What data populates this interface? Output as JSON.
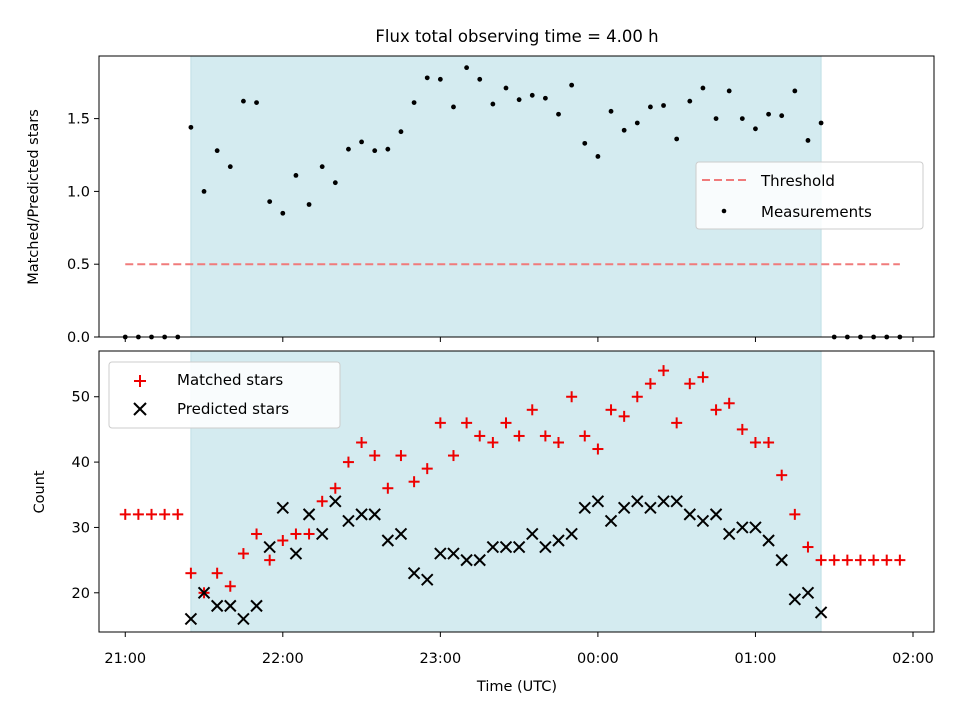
{
  "figure": {
    "title": "Flux total observing time = 4.00 h",
    "xlabel": "Time (UTC)",
    "x_tick_labels": [
      "21:00",
      "22:00",
      "23:00",
      "00:00",
      "01:00",
      "02:00"
    ],
    "colors": {
      "shade": "#d4ebf0",
      "shade_edge": "#bfe0e6",
      "threshold": "#f07b7b",
      "measurements": "#000000",
      "matched": "#ee0000",
      "predicted": "#000000"
    }
  },
  "chart_data": [
    {
      "type": "scatter",
      "ylabel": "Matched/Predicted stars",
      "xlim": [
        "20:50",
        "02:08"
      ],
      "ylim": [
        0,
        1.93
      ],
      "y_ticks": [
        "0.0",
        "0.5",
        "1.0",
        "1.5"
      ],
      "shaded_span": [
        "21:25",
        "01:25"
      ],
      "legend": {
        "location": "center right",
        "entries": [
          "Threshold",
          "Measurements"
        ]
      },
      "threshold": {
        "name": "Threshold",
        "y": 0.5,
        "x_range": [
          "21:00",
          "01:55"
        ]
      },
      "series": [
        {
          "name": "Measurements",
          "x": [
            "21:00",
            "21:05",
            "21:10",
            "21:15",
            "21:20",
            "21:25",
            "21:30",
            "21:35",
            "21:40",
            "21:45",
            "21:50",
            "21:55",
            "22:00",
            "22:05",
            "22:10",
            "22:15",
            "22:20",
            "22:25",
            "22:30",
            "22:35",
            "22:40",
            "22:45",
            "22:50",
            "22:55",
            "23:00",
            "23:05",
            "23:10",
            "23:15",
            "23:20",
            "23:25",
            "23:30",
            "23:35",
            "23:40",
            "23:45",
            "23:50",
            "23:55",
            "00:00",
            "00:05",
            "00:10",
            "00:15",
            "00:20",
            "00:25",
            "00:30",
            "00:35",
            "00:40",
            "00:45",
            "00:50",
            "00:55",
            "01:00",
            "01:05",
            "01:10",
            "01:15",
            "01:20",
            "01:25",
            "01:30",
            "01:35",
            "01:40",
            "01:45",
            "01:50",
            "01:55"
          ],
          "y": [
            0,
            0,
            0,
            0,
            0,
            1.44,
            1.0,
            1.28,
            1.17,
            1.62,
            1.61,
            0.93,
            0.85,
            1.11,
            0.91,
            1.17,
            1.06,
            1.29,
            1.34,
            1.28,
            1.29,
            1.41,
            1.61,
            1.78,
            1.77,
            1.58,
            1.85,
            1.77,
            1.6,
            1.71,
            1.63,
            1.66,
            1.64,
            1.53,
            1.73,
            1.33,
            1.24,
            1.55,
            1.42,
            1.47,
            1.58,
            1.59,
            1.36,
            1.62,
            1.71,
            1.5,
            1.69,
            1.5,
            1.43,
            1.53,
            1.52,
            1.69,
            1.35,
            1.47,
            0,
            0,
            0,
            0,
            0,
            0
          ]
        }
      ]
    },
    {
      "type": "scatter",
      "ylabel": "Count",
      "xlim": [
        "20:50",
        "02:08"
      ],
      "ylim": [
        14,
        57
      ],
      "y_ticks": [
        "20",
        "30",
        "40",
        "50"
      ],
      "shaded_span": [
        "21:25",
        "01:25"
      ],
      "legend": {
        "location": "upper left",
        "entries": [
          "Matched stars",
          "Predicted stars"
        ]
      },
      "series": [
        {
          "name": "Matched stars",
          "x": [
            "21:00",
            "21:05",
            "21:10",
            "21:15",
            "21:20",
            "21:25",
            "21:30",
            "21:35",
            "21:40",
            "21:45",
            "21:50",
            "21:55",
            "22:00",
            "22:05",
            "22:10",
            "22:15",
            "22:20",
            "22:25",
            "22:30",
            "22:35",
            "22:40",
            "22:45",
            "22:50",
            "22:55",
            "23:00",
            "23:05",
            "23:10",
            "23:15",
            "23:20",
            "23:25",
            "23:30",
            "23:35",
            "23:40",
            "23:45",
            "23:50",
            "23:55",
            "00:00",
            "00:05",
            "00:10",
            "00:15",
            "00:20",
            "00:25",
            "00:30",
            "00:35",
            "00:40",
            "00:45",
            "00:50",
            "00:55",
            "01:00",
            "01:05",
            "01:10",
            "01:15",
            "01:20",
            "01:25",
            "01:30",
            "01:35",
            "01:40",
            "01:45",
            "01:50",
            "01:55"
          ],
          "y": [
            32,
            32,
            32,
            32,
            32,
            23,
            20,
            23,
            21,
            26,
            29,
            25,
            28,
            29,
            29,
            34,
            36,
            40,
            43,
            41,
            36,
            41,
            37,
            39,
            46,
            41,
            46,
            44,
            43,
            46,
            44,
            48,
            44,
            43,
            50,
            44,
            42,
            48,
            47,
            50,
            52,
            54,
            46,
            52,
            53,
            48,
            49,
            45,
            43,
            43,
            38,
            32,
            27,
            25,
            25,
            25,
            25,
            25,
            25,
            25
          ]
        },
        {
          "name": "Predicted stars",
          "x": [
            "21:25",
            "21:30",
            "21:35",
            "21:40",
            "21:45",
            "21:50",
            "21:55",
            "22:00",
            "22:05",
            "22:10",
            "22:15",
            "22:20",
            "22:25",
            "22:30",
            "22:35",
            "22:40",
            "22:45",
            "22:50",
            "22:55",
            "23:00",
            "23:05",
            "23:10",
            "23:15",
            "23:20",
            "23:25",
            "23:30",
            "23:35",
            "23:40",
            "23:45",
            "23:50",
            "23:55",
            "00:00",
            "00:05",
            "00:10",
            "00:15",
            "00:20",
            "00:25",
            "00:30",
            "00:35",
            "00:40",
            "00:45",
            "00:50",
            "00:55",
            "01:00",
            "01:05",
            "01:10",
            "01:15",
            "01:20",
            "01:25"
          ],
          "y": [
            16,
            20,
            18,
            18,
            16,
            18,
            27,
            33,
            26,
            32,
            29,
            34,
            31,
            32,
            32,
            28,
            29,
            23,
            22,
            26,
            26,
            25,
            25,
            27,
            27,
            27,
            29,
            27,
            28,
            29,
            33,
            34,
            31,
            33,
            34,
            33,
            34,
            34,
            32,
            31,
            32,
            29,
            30,
            30,
            28,
            25,
            19,
            20,
            17
          ]
        }
      ]
    }
  ]
}
